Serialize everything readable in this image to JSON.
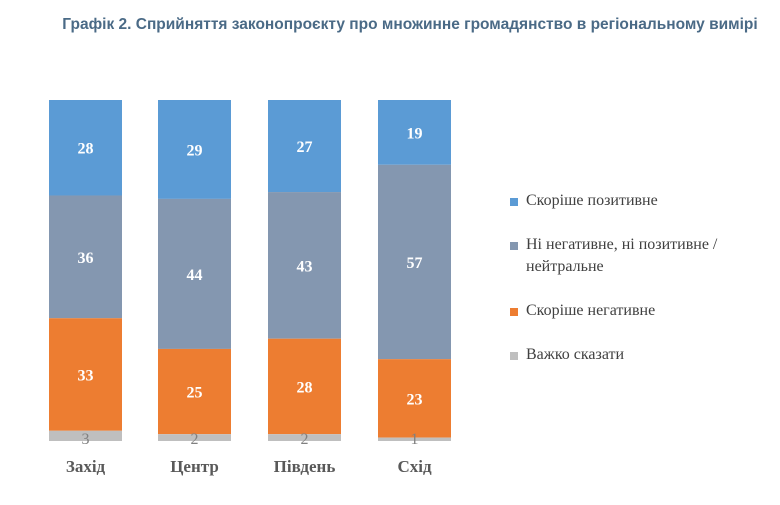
{
  "chart_data": {
    "type": "bar",
    "stacked": true,
    "title": "Графік 2. Сприйняття законопроєкту про множинне громадянство в регіональному вимірі",
    "categories": [
      "Захід",
      "Центр",
      "Південь",
      "Схід"
    ],
    "ylim": [
      0,
      100
    ],
    "grid": false,
    "legend_position": "right",
    "series": [
      {
        "name": "Скоріше позитивне",
        "color": "#5B9BD5",
        "values": [
          28,
          29,
          27,
          19
        ]
      },
      {
        "name": "Ні негативне, ні позитивне / нейтральне",
        "color": "#8497B0",
        "values": [
          36,
          44,
          43,
          57
        ]
      },
      {
        "name": "Скоріше негативне",
        "color": "#ED7D31",
        "values": [
          33,
          25,
          28,
          23
        ]
      },
      {
        "name": "Важко сказати",
        "color": "#BFBFBF",
        "values": [
          3,
          2,
          2,
          1
        ]
      }
    ]
  }
}
